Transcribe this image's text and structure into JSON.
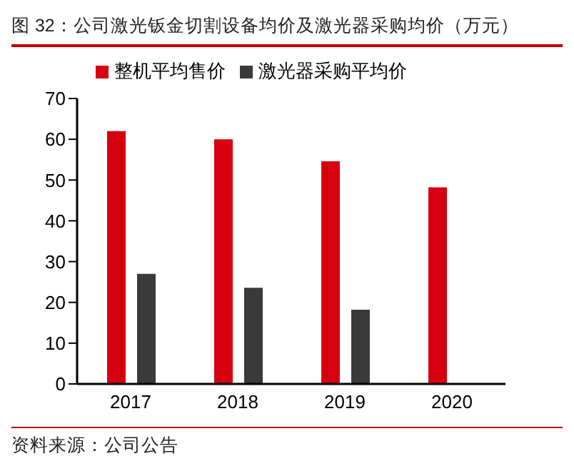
{
  "chart_data": {
    "type": "bar",
    "title": "图 32：公司激光钣金切割设备均价及激光器采购均价（万元）",
    "categories": [
      "2017",
      "2018",
      "2019",
      "2020"
    ],
    "series": [
      {
        "name": "整机平均售价",
        "color": "#d7000f",
        "values": [
          62,
          60,
          54.6,
          48.2
        ]
      },
      {
        "name": "激光器采购平均价",
        "color": "#3a3a3a",
        "values": [
          27,
          23.6,
          18.2,
          null
        ]
      }
    ],
    "ylim": [
      0,
      70
    ],
    "yticks": [
      0,
      10,
      20,
      30,
      40,
      50,
      60,
      70
    ],
    "grid": false,
    "legend": "top",
    "annotations": [
      "资料来源：公司公告"
    ]
  }
}
